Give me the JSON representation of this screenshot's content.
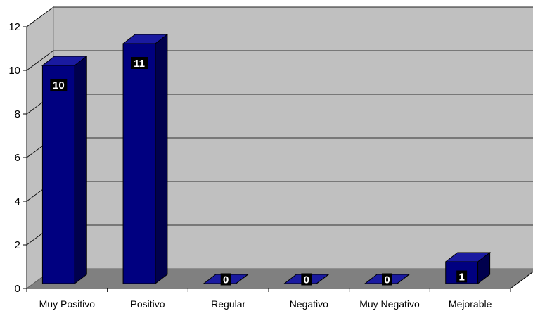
{
  "chart_data": {
    "type": "bar",
    "categories": [
      "Muy Positivo",
      "Positivo",
      "Regular",
      "Negativo",
      "Muy Negativo",
      "Mejorable"
    ],
    "values": [
      10,
      11,
      0,
      0,
      0,
      1
    ],
    "data_labels": [
      "10",
      "11",
      "0",
      "0",
      "0",
      "1"
    ],
    "y_ticks": [
      "0",
      "2",
      "4",
      "6",
      "8",
      "10",
      "12"
    ],
    "ylim": [
      0,
      12
    ],
    "grid": true,
    "legend": "none",
    "colors": {
      "bar_front": "#000080",
      "bar_side": "#00004d",
      "bar_top": "#1a1aa0",
      "wall": "#c0c0c0",
      "floor": "#808080",
      "gridline": "#000000",
      "data_label_bg": "#000000",
      "data_label_text": "#ffffff"
    }
  }
}
